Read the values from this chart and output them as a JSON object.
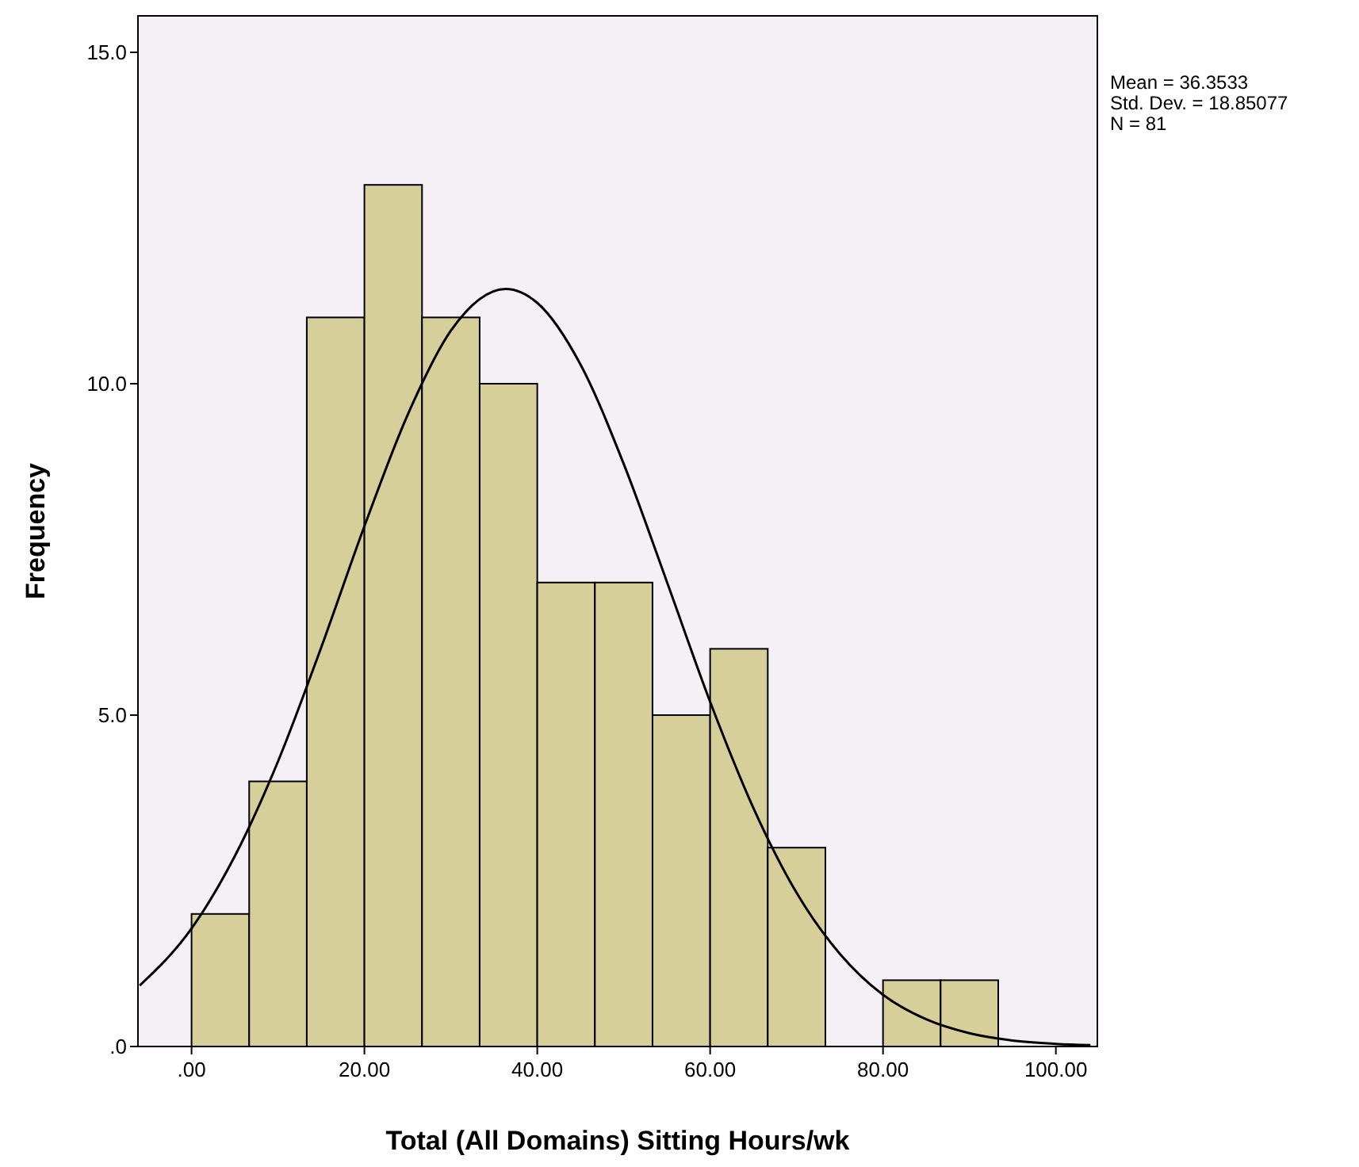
{
  "chart_data": {
    "type": "histogram",
    "xlabel": "Total (All Domains) Sitting Hours/wk",
    "ylabel": "Frequency",
    "bins": [
      0,
      6.667,
      13.333,
      20,
      26.667,
      33.333,
      40,
      46.667,
      53.333,
      60,
      66.667,
      73.333,
      80,
      86.667,
      93.333
    ],
    "values": [
      2,
      4,
      11,
      13,
      11,
      10,
      7,
      7,
      5,
      6,
      3,
      0,
      1,
      1
    ],
    "color": "#d6cf9a",
    "series": [
      {
        "type": "line",
        "color": "#000000",
        "x": [
          -6,
          0,
          5,
          10,
          15,
          20,
          25,
          30,
          36.35,
          40,
          45,
          50,
          55,
          60,
          65,
          70,
          75,
          80,
          85,
          90,
          95,
          100,
          104
        ],
        "values": [
          0.92,
          1.78,
          2.87,
          4.3,
          6.02,
          7.85,
          9.53,
          10.8,
          11.43,
          11.22,
          10.29,
          8.79,
          7.01,
          5.2,
          3.6,
          2.32,
          1.4,
          0.78,
          0.41,
          0.2,
          0.09,
          0.04,
          0.02
        ]
      }
    ],
    "xlim": [
      -6.2,
      104.8
    ],
    "xticks": [
      {
        "value": 0,
        "label": ".00"
      },
      {
        "value": 20,
        "label": "20.00"
      },
      {
        "value": 40,
        "label": "40.00"
      },
      {
        "value": 60,
        "label": "60.00"
      },
      {
        "value": 80,
        "label": "80.00"
      },
      {
        "value": 100,
        "label": "100.00"
      }
    ],
    "ylim": [
      0,
      15.55
    ],
    "yticks": [
      {
        "value": 0,
        "label": ".0"
      },
      {
        "value": 5,
        "label": "5.0"
      },
      {
        "value": 10,
        "label": "10.0"
      },
      {
        "value": 15,
        "label": "15.0"
      }
    ],
    "annotations": [
      "Mean = 36.3533",
      "Std. Dev. = 18.85077",
      "N = 81"
    ]
  }
}
